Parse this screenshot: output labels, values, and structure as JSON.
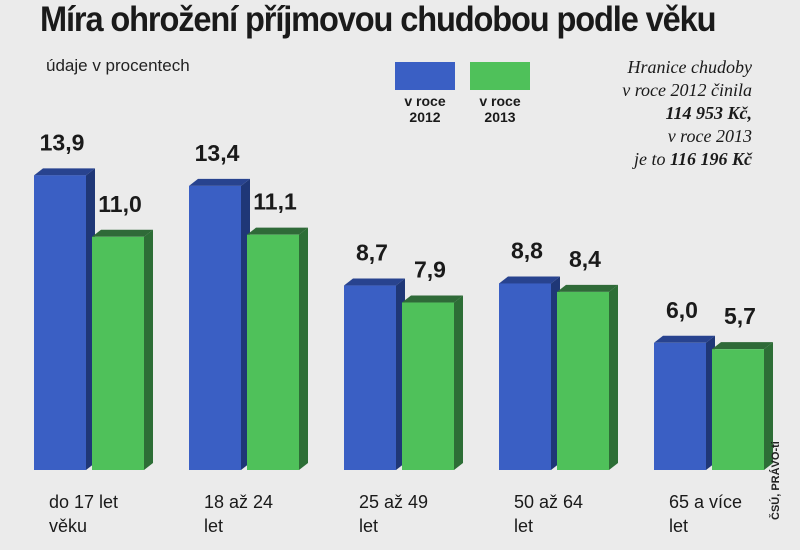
{
  "title": "Míra ohrožení příjmovou chudobou podle věku",
  "subtitle": "údaje v procentech",
  "note": {
    "line1": "Hranice chudoby",
    "line2": "v roce 2012 činila",
    "line3": "114 953 Kč,",
    "line4": "v roce 2013",
    "line5_prefix": "je to ",
    "line5_bold": "116 196 Kč"
  },
  "source": "ČSÚ, PRÁVO-ti",
  "colors": {
    "blue_front": "#3a5fc4",
    "blue_side": "#1f3777",
    "blue_top": "#28438f",
    "green_front": "#4fc15a",
    "green_side": "#2d6e36",
    "green_top": "#2f6a38"
  },
  "chart_data": {
    "type": "bar",
    "categories": [
      "do 17 let\nvěku",
      "18 až 24\nlet",
      "25 až 49\nlet",
      "50 až 64\nlet",
      "65 a více\nlet"
    ],
    "series": [
      {
        "name": "v roce 2012",
        "values": [
          13.9,
          13.4,
          8.7,
          8.8,
          6.0
        ],
        "value_labels": [
          "13,9",
          "13,4",
          "8,7",
          "8,8",
          "6,0"
        ]
      },
      {
        "name": "v roce 2013",
        "values": [
          11.0,
          11.1,
          7.9,
          8.4,
          5.7
        ],
        "value_labels": [
          "11,0",
          "11,1",
          "7,9",
          "8,4",
          "5,7"
        ]
      }
    ],
    "legend": [
      {
        "line1": "v roce",
        "line2": "2012"
      },
      {
        "line1": "v roce",
        "line2": "2013"
      }
    ],
    "ylim": [
      0,
      15
    ],
    "grid": false,
    "legend_placement": "top-right"
  }
}
